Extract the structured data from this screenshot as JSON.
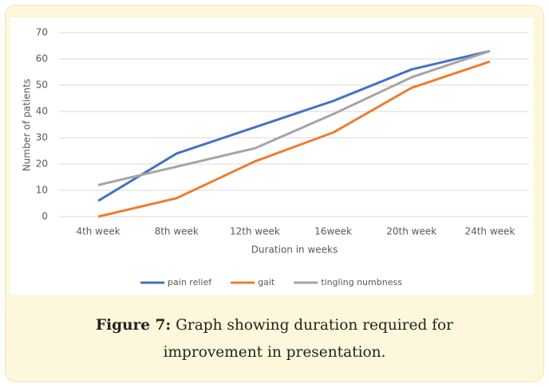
{
  "chart_data": {
    "type": "line",
    "categories": [
      "4th week",
      "8th week",
      "12th week",
      "16week",
      "20th week",
      "24th week"
    ],
    "series": [
      {
        "name": "pain relief",
        "color": "#4472c4",
        "values": [
          6,
          24,
          34,
          44,
          56,
          63
        ]
      },
      {
        "name": "gait",
        "color": "#ed7d31",
        "values": [
          0,
          7,
          21,
          32,
          49,
          59
        ]
      },
      {
        "name": "tingling numbness",
        "color": "#a5a5a5",
        "values": [
          12,
          19,
          26,
          39,
          53,
          63
        ]
      }
    ],
    "ylim": [
      0,
      70
    ],
    "yticks": [
      0,
      10,
      20,
      30,
      40,
      50,
      60,
      70
    ],
    "grid": true,
    "xlabel": "Duration in weeks",
    "ylabel": "Number of patients",
    "legend": "bottom"
  },
  "caption": {
    "label": "Figure 7:",
    "text": "Graph showing duration required for improvement in presentation."
  }
}
